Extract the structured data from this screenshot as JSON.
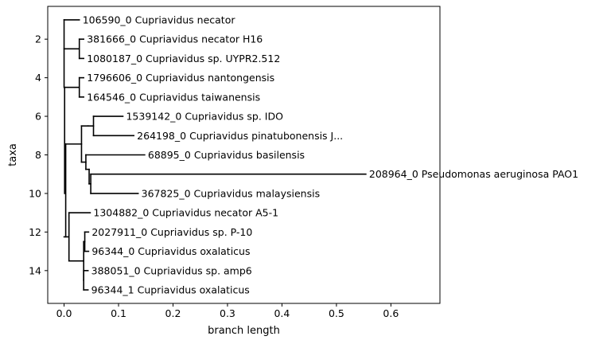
{
  "chart_data": {
    "type": "phylogenetic-tree",
    "xlabel": "branch length",
    "ylabel": "taxa",
    "xlim": [
      -0.03,
      0.69
    ],
    "ylim": [
      15.7,
      0.3
    ],
    "xticks": [
      0.0,
      0.1,
      0.2,
      0.3,
      0.4,
      0.5,
      0.6
    ],
    "xtick_labels": [
      "0.0",
      "0.1",
      "0.2",
      "0.3",
      "0.4",
      "0.5",
      "0.6"
    ],
    "yticks": [
      2,
      4,
      6,
      8,
      10,
      12,
      14
    ],
    "ytick_labels": [
      "2",
      "4",
      "6",
      "8",
      "10",
      "12",
      "14"
    ],
    "grid": false,
    "line_color": "#000000",
    "leaves": [
      {
        "label": "106590_0 Cupriavidus necator",
        "x": 0.028,
        "y": 1
      },
      {
        "label": "381666_0 Cupriavidus necator H16",
        "x": 0.036,
        "y": 2
      },
      {
        "label": "1080187_0 Cupriavidus sp. UYPR2.512",
        "x": 0.036,
        "y": 3
      },
      {
        "label": "1796606_0 Cupriavidus nantongensis",
        "x": 0.036,
        "y": 4
      },
      {
        "label": "164546_0 Cupriavidus taiwanensis",
        "x": 0.036,
        "y": 5
      },
      {
        "label": "1539142_0 Cupriavidus sp. IDO",
        "x": 0.108,
        "y": 6
      },
      {
        "label": "264198_0 Cupriavidus pinatubonensis J...",
        "x": 0.128,
        "y": 7
      },
      {
        "label": "68895_0 Cupriavidus basilensis",
        "x": 0.148,
        "y": 8
      },
      {
        "label": "208964_0 Pseudomonas aeruginosa PAO1",
        "x": 0.554,
        "y": 9
      },
      {
        "label": "367825_0 Cupriavidus malaysiensis",
        "x": 0.136,
        "y": 10
      },
      {
        "label": "1304882_0 Cupriavidus necator A5-1",
        "x": 0.048,
        "y": 11
      },
      {
        "label": "2027911_0 Cupriavidus sp. P-10",
        "x": 0.045,
        "y": 12
      },
      {
        "label": "96344_0 Cupriavidus oxalaticus",
        "x": 0.045,
        "y": 13
      },
      {
        "label": "388051_0 Cupriavidus sp. amp6",
        "x": 0.044,
        "y": 14
      },
      {
        "label": "96344_1 Cupriavidus oxalaticus",
        "x": 0.044,
        "y": 15
      }
    ],
    "branches": {
      "horizontal": [
        [
          0.0,
          0.028,
          1
        ],
        [
          0.028,
          0.036,
          2
        ],
        [
          0.028,
          0.036,
          3
        ],
        [
          0.0,
          0.028,
          2.5
        ],
        [
          0.028,
          0.036,
          4
        ],
        [
          0.028,
          0.036,
          5
        ],
        [
          0.001,
          0.028,
          4.5
        ],
        [
          0.054,
          0.108,
          6
        ],
        [
          0.054,
          0.128,
          7
        ],
        [
          0.044,
          0.054,
          6.5
        ],
        [
          0.049,
          0.554,
          9
        ],
        [
          0.049,
          0.136,
          10
        ],
        [
          0.046,
          0.049,
          9.5
        ],
        [
          0.04,
          0.148,
          8
        ],
        [
          0.04,
          0.046,
          8.75
        ],
        [
          0.032,
          0.04,
          8.375
        ],
        [
          0.032,
          0.044,
          6.5
        ],
        [
          0.003,
          0.032,
          7.4375
        ],
        [
          0.009,
          0.048,
          11
        ],
        [
          0.038,
          0.045,
          12
        ],
        [
          0.038,
          0.045,
          13
        ],
        [
          0.036,
          0.044,
          14
        ],
        [
          0.036,
          0.044,
          15
        ],
        [
          0.038,
          0.036,
          12.5
        ],
        [
          0.036,
          0.036,
          14.5
        ],
        [
          0.009,
          0.036,
          13.5
        ],
        [
          0.0,
          0.009,
          12.25
        ]
      ],
      "vertical": [
        [
          0.028,
          2,
          3
        ],
        [
          0.028,
          4,
          5
        ],
        [
          0.054,
          6,
          7
        ],
        [
          0.049,
          9,
          10
        ],
        [
          0.046,
          8.75,
          9.5
        ],
        [
          0.04,
          8,
          8.75
        ],
        [
          0.032,
          6.5,
          8.375
        ],
        [
          0.038,
          12,
          13
        ],
        [
          0.036,
          14,
          15
        ],
        [
          0.036,
          12.5,
          14.5
        ],
        [
          0.009,
          11,
          13.5
        ],
        [
          0.0,
          1,
          4.5
        ],
        [
          0.001,
          4.5,
          10
        ],
        [
          0.003,
          7.4375,
          12.25
        ]
      ]
    }
  }
}
